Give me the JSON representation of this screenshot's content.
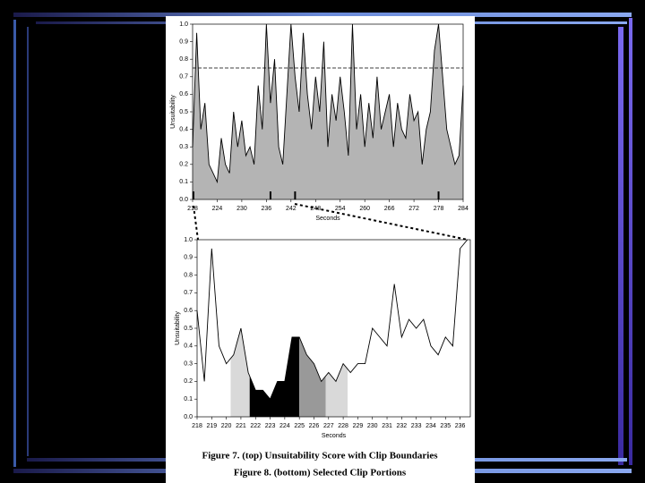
{
  "figure_captions": [
    "Figure 7. (top) Unsuitability Score with Clip Boundaries",
    "Figure 8. (bottom) Selected Clip Portions"
  ],
  "chart_data": [
    {
      "type": "area",
      "xlabel": "Seconds",
      "ylabel": "Unsuitability",
      "x": [
        218,
        219,
        220,
        221,
        222,
        223,
        224,
        225,
        226,
        227,
        228,
        229,
        230,
        231,
        232,
        233,
        234,
        235,
        236,
        237,
        238,
        239,
        240,
        241,
        242,
        243,
        244,
        245,
        246,
        247,
        248,
        249,
        250,
        251,
        252,
        253,
        254,
        255,
        256,
        257,
        258,
        259,
        260,
        261,
        262,
        263,
        264,
        265,
        266,
        267,
        268,
        269,
        270,
        271,
        272,
        273,
        274,
        275,
        276,
        277,
        278,
        279,
        280,
        281,
        282,
        283,
        284
      ],
      "values": [
        0.3,
        0.95,
        0.4,
        0.55,
        0.2,
        0.15,
        0.1,
        0.35,
        0.2,
        0.15,
        0.5,
        0.3,
        0.45,
        0.25,
        0.3,
        0.2,
        0.65,
        0.4,
        1.0,
        0.55,
        0.8,
        0.3,
        0.2,
        0.6,
        1.0,
        0.7,
        0.5,
        0.95,
        0.6,
        0.4,
        0.7,
        0.5,
        0.9,
        0.3,
        0.6,
        0.45,
        0.7,
        0.5,
        0.25,
        1.0,
        0.4,
        0.6,
        0.3,
        0.55,
        0.35,
        0.7,
        0.4,
        0.5,
        0.6,
        0.3,
        0.55,
        0.4,
        0.35,
        0.6,
        0.45,
        0.5,
        0.2,
        0.4,
        0.5,
        0.85,
        1.0,
        0.7,
        0.4,
        0.3,
        0.2,
        0.25,
        0.65
      ],
      "color": "#b4b4b4",
      "line_color": "#000000",
      "xlim": [
        218,
        284
      ],
      "ylim": [
        0,
        1
      ],
      "xticks": [
        218,
        224,
        230,
        236,
        242,
        248,
        254,
        260,
        266,
        272,
        278,
        284
      ],
      "yticks": [
        {
          "value": 0,
          "label": "0.0"
        },
        0.1,
        0.2,
        0.3,
        0.4,
        0.5,
        0.6,
        0.7,
        0.8,
        0.9,
        {
          "value": 1,
          "label": "1.0"
        }
      ],
      "threshold": 0.75,
      "clip_boundaries": [
        218.2,
        237,
        243,
        278
      ]
    },
    {
      "type": "area",
      "xlabel": "Seconds",
      "ylabel": "Unsuitability",
      "x": [
        218,
        218.5,
        219,
        219.5,
        220,
        220.5,
        221,
        221.5,
        222,
        222.5,
        223,
        223.5,
        224,
        224.5,
        225,
        225.5,
        226,
        226.5,
        227,
        227.5,
        228,
        228.5,
        229,
        229.5,
        230,
        230.5,
        231,
        231.5,
        232,
        232.5,
        233,
        233.5,
        234,
        234.5,
        235,
        235.5,
        236,
        236.5
      ],
      "values": [
        0.6,
        0.2,
        0.95,
        0.4,
        0.3,
        0.35,
        0.5,
        0.25,
        0.15,
        0.15,
        0.1,
        0.2,
        0.2,
        0.45,
        0.45,
        0.35,
        0.3,
        0.2,
        0.25,
        0.2,
        0.3,
        0.25,
        0.3,
        0.3,
        0.5,
        0.45,
        0.4,
        0.75,
        0.45,
        0.55,
        0.5,
        0.55,
        0.4,
        0.35,
        0.45,
        0.4,
        0.95,
        1.0
      ],
      "color": "#ffffff",
      "line_color": "#000000",
      "xlim": [
        218,
        236.7
      ],
      "ylim": [
        0,
        1
      ],
      "xticks": [
        218,
        219,
        220,
        221,
        222,
        223,
        224,
        225,
        226,
        227,
        228,
        229,
        230,
        231,
        232,
        233,
        234,
        235,
        236
      ],
      "yticks": [
        {
          "value": 0,
          "label": "0.0"
        },
        0.1,
        0.2,
        0.3,
        0.4,
        0.5,
        0.6,
        0.7,
        0.8,
        0.9,
        {
          "value": 1,
          "label": "1.0"
        }
      ],
      "regions": [
        {
          "from": 220.3,
          "to": 221.6,
          "color": "#d9d9d9"
        },
        {
          "from": 221.6,
          "to": 225,
          "color": "#000000"
        },
        {
          "from": 225,
          "to": 226.8,
          "color": "#999999"
        },
        {
          "from": 226.8,
          "to": 228.3,
          "color": "#d9d9d9"
        }
      ]
    }
  ]
}
